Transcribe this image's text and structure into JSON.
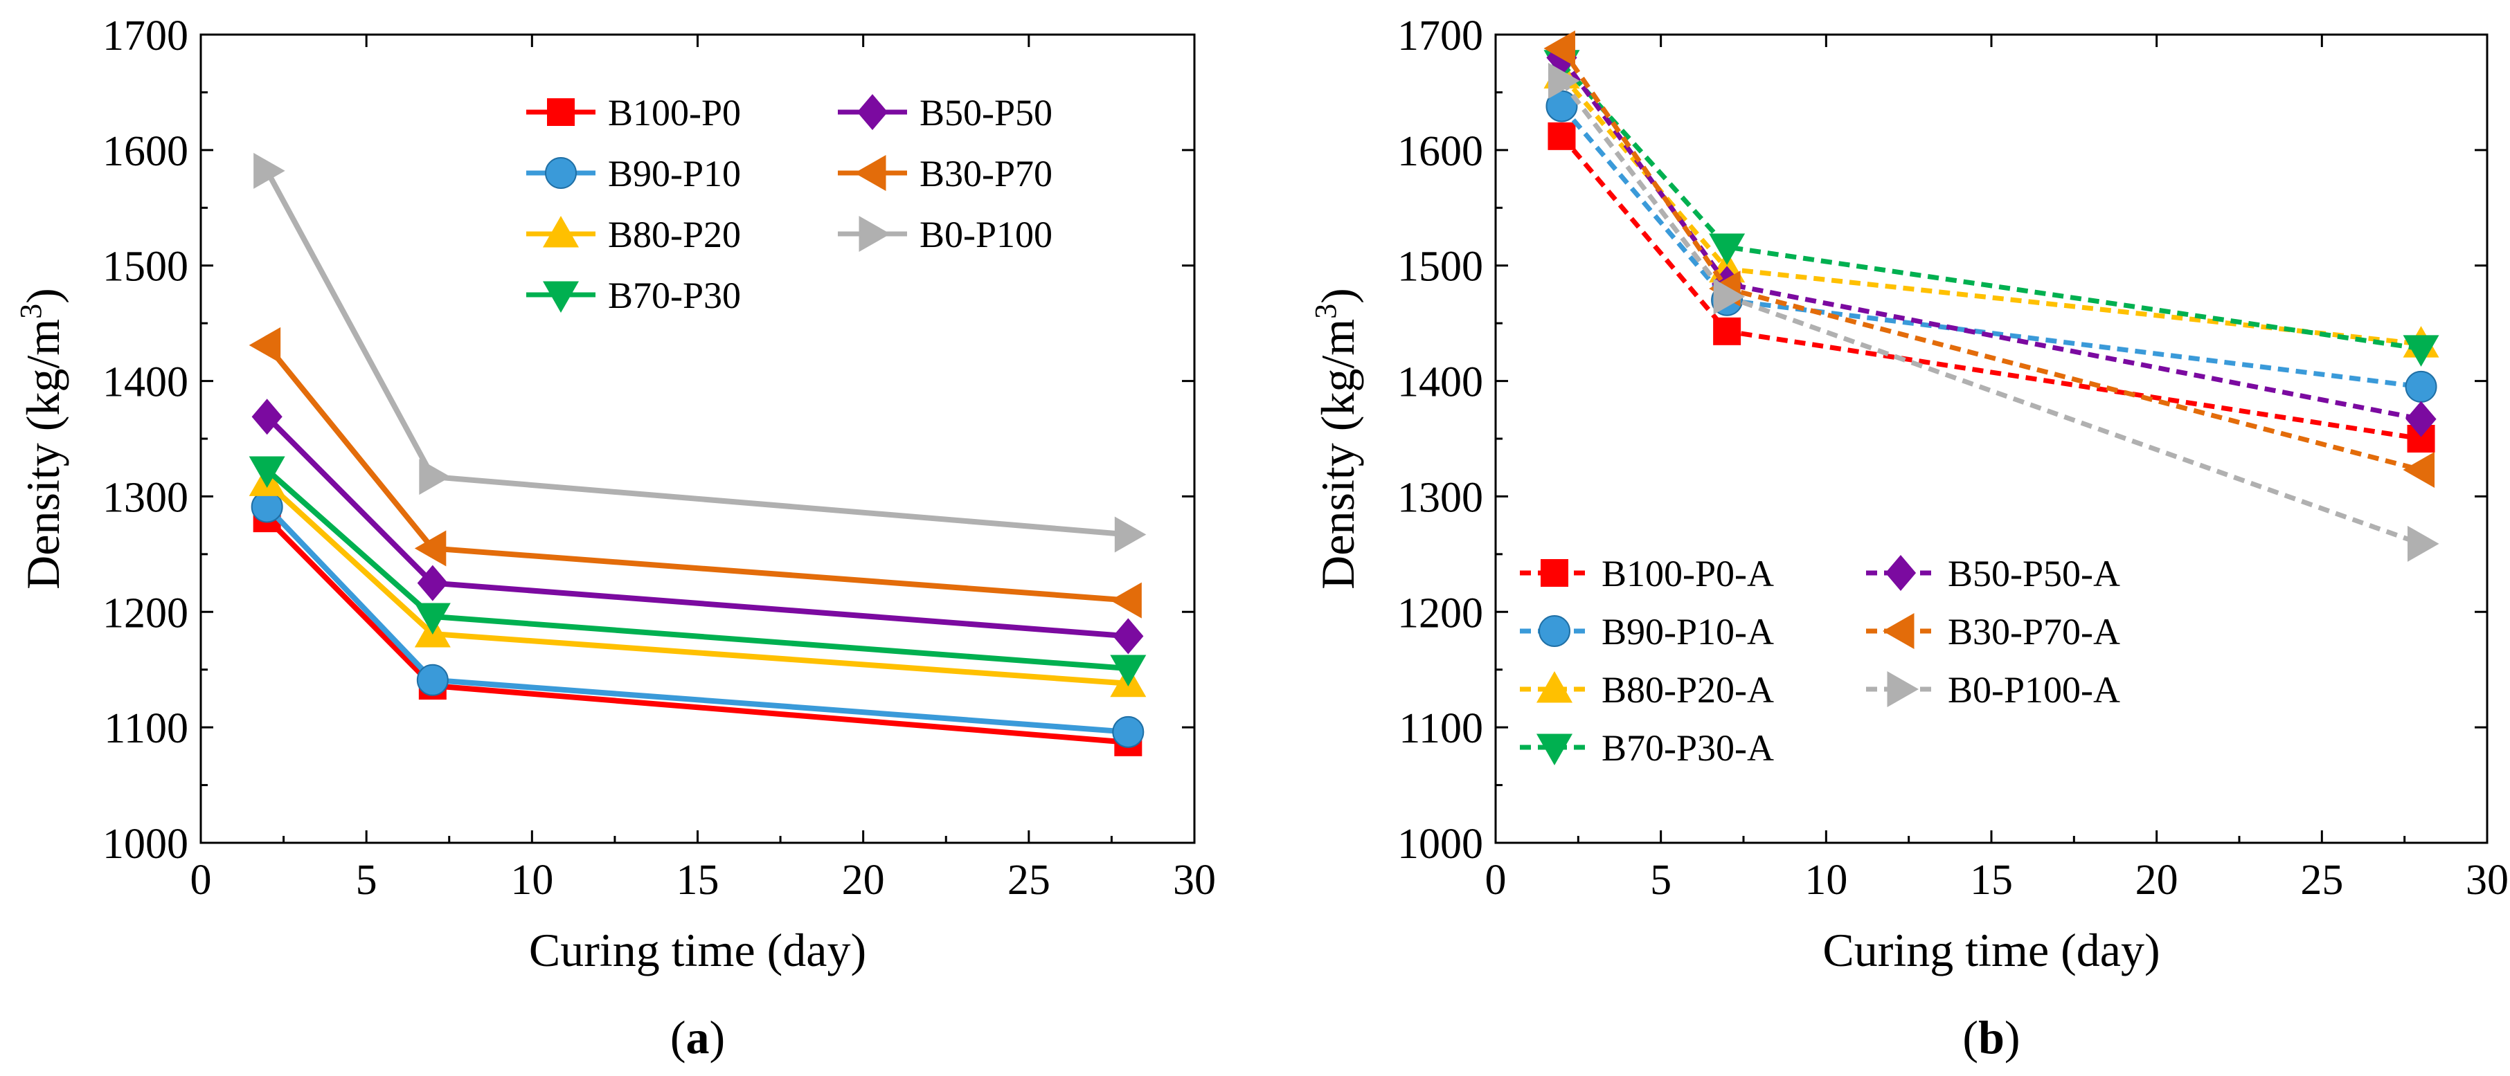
{
  "chart_data": [
    {
      "type": "line",
      "panel": "a",
      "panel_label": "a",
      "xlabel": "Curing time (day)",
      "ylabel_prefix": "Density (kg/m",
      "ylabel_sup": "3",
      "ylabel_suffix": ")",
      "xlim": [
        0,
        30
      ],
      "ylim": [
        1000,
        1700
      ],
      "xticks": [
        0,
        5,
        10,
        15,
        20,
        25,
        30
      ],
      "yticks": [
        1000,
        1100,
        1200,
        1300,
        1400,
        1500,
        1600,
        1700
      ],
      "x": [
        2,
        7,
        28
      ],
      "grid": false,
      "legend": "top-right",
      "legend_columns": 2,
      "line_style": "solid",
      "series": [
        {
          "name": "B100-P0",
          "color": "#ff0000",
          "marker": "square",
          "values": [
            1281,
            1136,
            1087
          ]
        },
        {
          "name": "B90-P10",
          "color": "#3a9ad9",
          "marker": "circle",
          "values": [
            1291,
            1141,
            1096
          ]
        },
        {
          "name": "B80-P20",
          "color": "#ffc000",
          "marker": "triangle-up",
          "values": [
            1312,
            1181,
            1138
          ]
        },
        {
          "name": "B70-P30",
          "color": "#00b050",
          "marker": "triangle-down",
          "values": [
            1323,
            1196,
            1151
          ]
        },
        {
          "name": "B50-P50",
          "color": "#7b0aa0",
          "marker": "diamond",
          "values": [
            1369,
            1225,
            1179
          ]
        },
        {
          "name": "B30-P70",
          "color": "#e36c0a",
          "marker": "triangle-left",
          "values": [
            1431,
            1255,
            1210
          ]
        },
        {
          "name": "B0-P100",
          "color": "#b0b0b0",
          "marker": "triangle-right",
          "values": [
            1582,
            1317,
            1267
          ]
        }
      ]
    },
    {
      "type": "line",
      "panel": "b",
      "panel_label": "b",
      "xlabel": "Curing time (day)",
      "ylabel_prefix": "Density (kg/m",
      "ylabel_sup": "3",
      "ylabel_suffix": ")",
      "xlim": [
        0,
        30
      ],
      "ylim": [
        1000,
        1700
      ],
      "xticks": [
        0,
        5,
        10,
        15,
        20,
        25,
        30
      ],
      "yticks": [
        1000,
        1100,
        1200,
        1300,
        1400,
        1500,
        1600,
        1700
      ],
      "x": [
        2,
        7,
        28
      ],
      "grid": false,
      "legend": "bottom-left",
      "legend_columns": 2,
      "line_style": "dashed",
      "series": [
        {
          "name": "B100-P0-A",
          "color": "#ff0000",
          "marker": "square",
          "values": [
            1612,
            1443,
            1350
          ]
        },
        {
          "name": "B90-P10-A",
          "color": "#3a9ad9",
          "marker": "circle",
          "values": [
            1638,
            1470,
            1395
          ]
        },
        {
          "name": "B80-P20-A",
          "color": "#ffc000",
          "marker": "triangle-up",
          "values": [
            1665,
            1497,
            1432
          ]
        },
        {
          "name": "B70-P30-A",
          "color": "#00b050",
          "marker": "triangle-down",
          "values": [
            1675,
            1516,
            1428
          ]
        },
        {
          "name": "B50-P50-A",
          "color": "#7b0aa0",
          "marker": "diamond",
          "values": [
            1680,
            1484,
            1367
          ]
        },
        {
          "name": "B30-P70-A",
          "color": "#e36c0a",
          "marker": "triangle-left",
          "values": [
            1688,
            1480,
            1323
          ]
        },
        {
          "name": "B0-P100-A",
          "color": "#b0b0b0",
          "marker": "triangle-right",
          "values": [
            1660,
            1473,
            1259
          ]
        }
      ]
    }
  ]
}
